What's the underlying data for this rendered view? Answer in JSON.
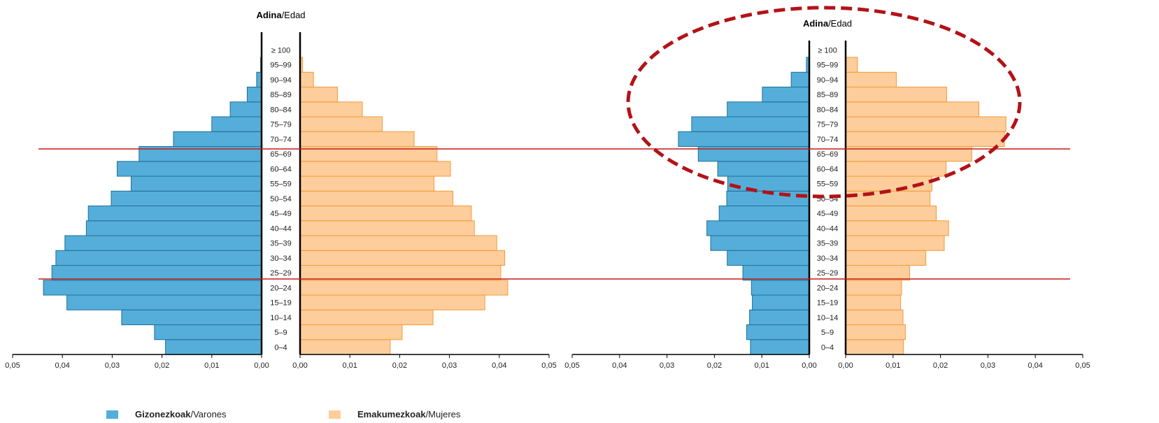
{
  "chart_data": [
    {
      "type": "bar",
      "subtype": "population-pyramid",
      "category_title_bold": "Adina",
      "category_title_rest": "/Edad",
      "categories": [
        "0–4",
        "5–9",
        "10–14",
        "15–19",
        "20–24",
        "25–29",
        "30–34",
        "35–39",
        "40–44",
        "45–49",
        "50–54",
        "55–59",
        "60–64",
        "65–69",
        "70–74",
        "75–79",
        "80–84",
        "85–89",
        "90–94",
        "95–99",
        "≥ 100"
      ],
      "series": [
        {
          "name": "Gizonezkoak/Varones",
          "side": "left",
          "values": [
            0.0193,
            0.0215,
            0.0281,
            0.0391,
            0.0438,
            0.0421,
            0.0413,
            0.0395,
            0.0352,
            0.0348,
            0.0302,
            0.0262,
            0.029,
            0.0246,
            0.0177,
            0.01,
            0.0063,
            0.0029,
            0.001,
            0.0002,
            0.0
          ]
        },
        {
          "name": "Emakumezkoak/Mujeres",
          "side": "right",
          "values": [
            0.0181,
            0.0205,
            0.0267,
            0.0371,
            0.0417,
            0.0403,
            0.0411,
            0.0395,
            0.035,
            0.0344,
            0.0307,
            0.0269,
            0.0302,
            0.0275,
            0.0229,
            0.0165,
            0.0125,
            0.0075,
            0.0027,
            0.0005,
            0.0001
          ]
        }
      ],
      "xlim": [
        0,
        0.05
      ],
      "x_ticks": [
        "0,05",
        "0,04",
        "0,03",
        "0,02",
        "0,01",
        "0,00"
      ],
      "x_ticks_right": [
        "0,00",
        "0,01",
        "0,02",
        "0,03",
        "0,04",
        "0,05"
      ]
    },
    {
      "type": "bar",
      "subtype": "population-pyramid",
      "category_title_bold": "Adina",
      "category_title_rest": "/Edad",
      "categories": [
        "0–4",
        "5–9",
        "10–14",
        "15–19",
        "20–24",
        "25–29",
        "30–34",
        "35–39",
        "40–44",
        "45–49",
        "50–54",
        "55–59",
        "60–64",
        "65–69",
        "70–74",
        "75–79",
        "80–84",
        "85–89",
        "90–94",
        "95–99",
        "≥ 100"
      ],
      "series": [
        {
          "name": "Gizonezkoak/Varones",
          "side": "left",
          "values": [
            0.0124,
            0.0132,
            0.0126,
            0.012,
            0.0122,
            0.014,
            0.0173,
            0.0208,
            0.0216,
            0.019,
            0.0174,
            0.0172,
            0.0193,
            0.0234,
            0.0276,
            0.0248,
            0.0173,
            0.0099,
            0.0038,
            0.0006,
            0.0
          ]
        },
        {
          "name": "Emakumezkoak/Mujeres",
          "side": "right",
          "values": [
            0.0122,
            0.0126,
            0.0121,
            0.0116,
            0.0118,
            0.0135,
            0.0169,
            0.0208,
            0.0217,
            0.0191,
            0.0178,
            0.0182,
            0.0212,
            0.0266,
            0.0335,
            0.0338,
            0.0281,
            0.0213,
            0.0107,
            0.0025,
            0.0
          ]
        }
      ],
      "xlim": [
        0,
        0.05
      ],
      "x_ticks": [
        "0,05",
        "0,04",
        "0,03",
        "0,02",
        "0,01",
        "0,00"
      ],
      "x_ticks_right": [
        "0,00",
        "0,01",
        "0,02",
        "0,03",
        "0,04",
        "0,05"
      ]
    }
  ],
  "colors": {
    "male_fill": "#55aed9",
    "male_stroke": "#1f6f98",
    "female_fill": "#fdcd9b",
    "female_stroke": "#f49a38",
    "reference_line": "#c51a1a",
    "highlight_ellipse": "#b31217"
  },
  "legend": {
    "male_bold": "Gizonezkoak",
    "male_rest": "/Varones",
    "female_bold": "Emakumezkoak",
    "female_rest": "/Mujeres"
  }
}
